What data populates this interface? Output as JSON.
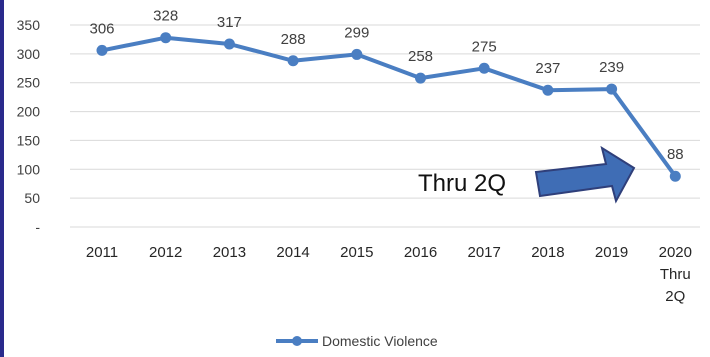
{
  "chart_data": {
    "type": "line",
    "categories": [
      "2011",
      "2012",
      "2013",
      "2014",
      "2015",
      "2016",
      "2017",
      "2018",
      "2019",
      "2020 Thru 2Q"
    ],
    "category_lines": [
      [
        "2011"
      ],
      [
        "2012"
      ],
      [
        "2013"
      ],
      [
        "2014"
      ],
      [
        "2015"
      ],
      [
        "2016"
      ],
      [
        "2017"
      ],
      [
        "2018"
      ],
      [
        "2019"
      ],
      [
        "2020",
        "Thru",
        "2Q"
      ]
    ],
    "series": [
      {
        "name": "Domestic Violence",
        "values": [
          306,
          328,
          317,
          288,
          299,
          258,
          275,
          237,
          239,
          88
        ],
        "color": "#4a7ec2"
      }
    ],
    "y_ticks": [
      "-",
      "50",
      "100",
      "150",
      "200",
      "250",
      "300",
      "350"
    ],
    "ylim": [
      0,
      350
    ],
    "grid": true,
    "legend_position": "bottom",
    "data_labels": true,
    "annotation": {
      "text": "Thru 2Q",
      "arrow_color": "#3f6db5",
      "arrow_outline": "#2f3f7a"
    }
  }
}
